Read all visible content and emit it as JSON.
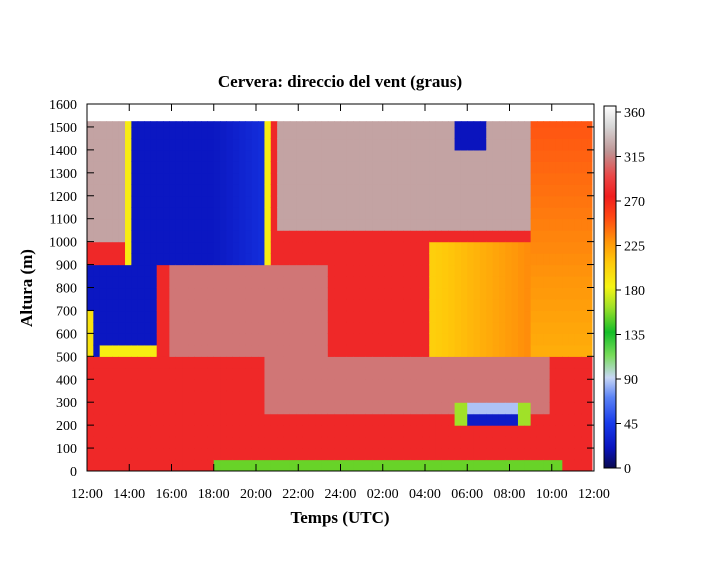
{
  "chart_data": {
    "type": "heatmap",
    "title": "Cervera: direccio del vent (graus)",
    "xlabel": "Temps (UTC)",
    "ylabel": "Altura (m)",
    "x_ticks": [
      "12:00",
      "14:00",
      "16:00",
      "18:00",
      "20:00",
      "22:00",
      "24:00",
      "02:00",
      "04:00",
      "06:00",
      "08:00",
      "10:00",
      "12:00"
    ],
    "y_ticks": [
      "0",
      "100",
      "200",
      "300",
      "400",
      "500",
      "600",
      "700",
      "800",
      "900",
      "1000",
      "1100",
      "1200",
      "1300",
      "1400",
      "1500",
      "1600"
    ],
    "ylim": [
      0,
      1600
    ],
    "xlim_hours": [
      12,
      36
    ],
    "colorbar": {
      "ticks": [
        "0",
        "45",
        "90",
        "135",
        "180",
        "225",
        "270",
        "315",
        "360"
      ],
      "range": [
        0,
        360
      ]
    },
    "data_extent": {
      "x_hours": [
        12,
        35.9
      ],
      "height_m": [
        0,
        1525
      ]
    },
    "regions": [
      {
        "name": "background",
        "dir": 275
      },
      {
        "name": "upper-west-north",
        "x": [
          12,
          13.9
        ],
        "h": [
          1000,
          1525
        ],
        "dir": 320
      },
      {
        "name": "upper-north-band",
        "x": [
          13.9,
          20.7
        ],
        "h": [
          900,
          1525
        ],
        "dir": 22
      },
      {
        "name": "low-north-band",
        "x": [
          12,
          15.2
        ],
        "h": [
          500,
          900
        ],
        "dir": 22
      },
      {
        "name": "mid-northwest",
        "x": [
          15.8,
          23.5
        ],
        "h": [
          480,
          900
        ],
        "dir": 305
      },
      {
        "name": "night-northwest-band",
        "x": [
          20.5,
          34
        ],
        "h": [
          250,
          500
        ],
        "dir": 305
      },
      {
        "name": "high-northwest",
        "x": [
          21,
          33
        ],
        "h": [
          1050,
          1525
        ],
        "dir": 320
      },
      {
        "name": "southwest-upper",
        "x": [
          33,
          35.9
        ],
        "h": [
          500,
          1525
        ],
        "dir": 215
      },
      {
        "name": "southwest-mid",
        "x": [
          28.2,
          35.9
        ],
        "h": [
          500,
          1000
        ],
        "dir": 200
      },
      {
        "name": "north-patch-top",
        "x": [
          29.5,
          30.8
        ],
        "h": [
          1400,
          1525
        ],
        "dir": 20
      },
      {
        "name": "surface-south",
        "x": [
          18,
          34.5
        ],
        "h": [
          0,
          40
        ],
        "dir": 150
      },
      {
        "name": "low-north-pocket",
        "x": [
          29.2,
          33.2
        ],
        "h": [
          180,
          320
        ],
        "dir": 25
      }
    ]
  }
}
